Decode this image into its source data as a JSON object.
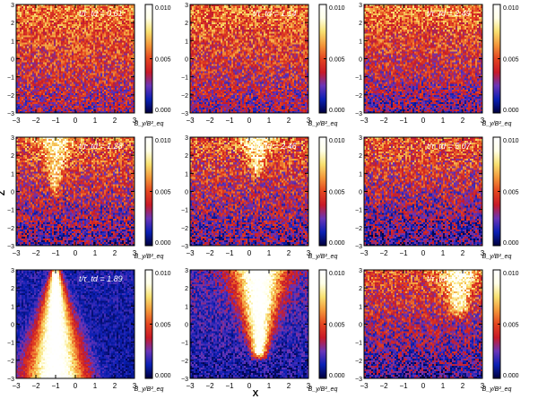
{
  "figure": {
    "ylabel": "Z",
    "xlabel": "X"
  },
  "colors": {
    "stops": [
      "#00003c",
      "#0a1fb4",
      "#6a35b8",
      "#c81a28",
      "#e44520",
      "#f3973a",
      "#f8e070",
      "#ffffe8",
      "#ffffff"
    ]
  },
  "chart_data": [
    {
      "type": "heatmap",
      "title": "t/τ_td = 0.61",
      "time_value": 0.61,
      "colorbar": {
        "label": "B̄_y/B²_eq",
        "ticks": [
          "0.010",
          "0.005",
          "0.000"
        ],
        "range": [
          0.0,
          0.01
        ]
      },
      "x_ticks": [
        "−3",
        "−2",
        "−1",
        "0",
        "1",
        "2",
        "3"
      ],
      "y_ticks": [
        "3",
        "2",
        "1",
        "0",
        "−1",
        "−2",
        "−3"
      ],
      "xlim": [
        -3,
        3
      ],
      "ylim": [
        -3,
        3
      ],
      "field": {
        "base": 0.45,
        "gradient": 0.28,
        "noise": 0.2,
        "blob": null
      }
    },
    {
      "type": "heatmap",
      "title": "t/τ_td = 1.14",
      "time_value": 1.14,
      "colorbar": {
        "label": "B̄_y/B²_eq",
        "ticks": [
          "0.010",
          "0.005",
          "0.000"
        ],
        "range": [
          0.0,
          0.01
        ]
      },
      "x_ticks": [
        "−3",
        "−2",
        "−1",
        "0",
        "1",
        "2",
        "3"
      ],
      "y_ticks": [
        "3",
        "2",
        "1",
        "0",
        "−1",
        "−2",
        "−3"
      ],
      "xlim": [
        -3,
        3
      ],
      "ylim": [
        -3,
        3
      ],
      "field": {
        "base": 0.44,
        "gradient": 0.3,
        "noise": 0.2,
        "blob": null
      }
    },
    {
      "type": "heatmap",
      "title": "t/τ_td = 2.49",
      "time_value": 2.49,
      "colorbar": {
        "label": "B̄_y/B²_eq",
        "ticks": [
          "0.010",
          "0.005",
          "0.000"
        ],
        "range": [
          0.0,
          0.01
        ]
      },
      "x_ticks": [
        "−3",
        "−2",
        "−1",
        "0",
        "1",
        "2",
        "3"
      ],
      "y_ticks": [
        "3",
        "2",
        "1",
        "0",
        "−1",
        "−2",
        "−3"
      ],
      "xlim": [
        -3,
        3
      ],
      "ylim": [
        -3,
        3
      ],
      "field": {
        "base": 0.42,
        "gradient": 0.34,
        "noise": 0.2,
        "blob": null
      }
    },
    {
      "type": "heatmap",
      "title": "t/τ_td = 1.28",
      "time_value": 1.28,
      "colorbar": {
        "label": "B̄_y/B²_eq",
        "ticks": [
          "0.010",
          "0.005",
          "0.000"
        ],
        "range": [
          0.0,
          0.01
        ]
      },
      "x_ticks": [
        "−3",
        "−2",
        "−1",
        "0",
        "1",
        "2",
        "3"
      ],
      "y_ticks": [
        "3",
        "2",
        "1",
        "0",
        "−1",
        "−2",
        "−3"
      ],
      "xlim": [
        -3,
        3
      ],
      "ylim": [
        -3,
        3
      ],
      "field": {
        "base": 0.38,
        "gradient": 0.32,
        "noise": 0.22,
        "blob": {
          "x": -1.0,
          "top": 3.0,
          "bottom": 0.2,
          "width_top": 1.1,
          "width_bottom": 0.25,
          "amp": 0.35
        }
      }
    },
    {
      "type": "heatmap",
      "title": "t/τ_td = 2.46",
      "time_value": 2.46,
      "colorbar": {
        "label": "B̄_y/B²_eq",
        "ticks": [
          "0.010",
          "0.005",
          "0.000"
        ],
        "range": [
          0.0,
          0.01
        ]
      },
      "x_ticks": [
        "−3",
        "−2",
        "−1",
        "0",
        "1",
        "2",
        "3"
      ],
      "y_ticks": [
        "3",
        "2",
        "1",
        "0",
        "−1",
        "−2",
        "−3"
      ],
      "xlim": [
        -3,
        3
      ],
      "ylim": [
        -3,
        3
      ],
      "field": {
        "base": 0.38,
        "gradient": 0.3,
        "noise": 0.22,
        "blob": {
          "x": 0.4,
          "top": 3.0,
          "bottom": 1.2,
          "width_top": 1.2,
          "width_bottom": 0.35,
          "amp": 0.33
        }
      }
    },
    {
      "type": "heatmap",
      "title": "t/τ_td = 5.07",
      "time_value": 5.07,
      "colorbar": {
        "label": "B̄_y/B²_eq",
        "ticks": [
          "0.010",
          "0.005",
          "0.000"
        ],
        "range": [
          0.0,
          0.01
        ]
      },
      "x_ticks": [
        "−3",
        "−2",
        "−1",
        "0",
        "1",
        "2",
        "3"
      ],
      "y_ticks": [
        "3",
        "2",
        "1",
        "0",
        "−1",
        "−2",
        "−3"
      ],
      "xlim": [
        -3,
        3
      ],
      "ylim": [
        -3,
        3
      ],
      "field": {
        "base": 0.36,
        "gradient": 0.36,
        "noise": 0.22,
        "blob": null
      }
    },
    {
      "type": "heatmap",
      "title": "t/τ_td = 1.89",
      "time_value": 1.89,
      "colorbar": {
        "label": "B̄_y/B²_eq",
        "ticks": [
          "0.010",
          "0.005",
          "0.000"
        ],
        "range": [
          0.0,
          0.01
        ]
      },
      "x_ticks": [
        "−3",
        "−2",
        "−1",
        "0",
        "1",
        "2",
        "3"
      ],
      "y_ticks": [
        "3",
        "2",
        "1",
        "0",
        "−1",
        "−2",
        "−3"
      ],
      "xlim": [
        -3,
        3
      ],
      "ylim": [
        -3,
        3
      ],
      "field": {
        "base": 0.12,
        "gradient": 0.05,
        "noise": 0.08,
        "blob": {
          "x": -1.0,
          "top": 2.8,
          "bottom": -3.0,
          "width_top": 0.3,
          "width_bottom": 2.0,
          "amp": 0.95
        }
      }
    },
    {
      "type": "heatmap",
      "title": "3.77",
      "time_value": 3.77,
      "colorbar": {
        "label": "B̄_y/B²_eq",
        "ticks": [
          "0.010",
          "0.005",
          "0.000"
        ],
        "range": [
          0.0,
          0.01
        ]
      },
      "x_ticks": [
        "−3",
        "−2",
        "−1",
        "0",
        "1",
        "2",
        "3"
      ],
      "y_ticks": [
        "3",
        "2",
        "1",
        "0",
        "−1",
        "−2",
        "−3"
      ],
      "xlim": [
        -3,
        3
      ],
      "ylim": [
        -3,
        3
      ],
      "field": {
        "base": 0.18,
        "gradient": 0.12,
        "noise": 0.12,
        "blob": {
          "x": 0.5,
          "top": 3.0,
          "bottom": -1.5,
          "width_top": 1.6,
          "width_bottom": 0.5,
          "amp": 0.85
        }
      }
    },
    {
      "type": "heatmap",
      "title": "t/τ_td = 11.28",
      "time_value": 11.28,
      "colorbar": {
        "label": "B̄_y/B²_eq",
        "ticks": [
          "0.010",
          "0.005",
          "0.000"
        ],
        "range": [
          0.0,
          0.01
        ]
      },
      "x_ticks": [
        "−3",
        "−2",
        "−1",
        "0",
        "1",
        "2",
        "3"
      ],
      "y_ticks": [
        "3",
        "2",
        "1",
        "0",
        "−1",
        "−2",
        "−3"
      ],
      "xlim": [
        -3,
        3
      ],
      "ylim": [
        -3,
        3
      ],
      "field": {
        "base": 0.34,
        "gradient": 0.34,
        "noise": 0.2,
        "blob": {
          "x": 1.8,
          "top": 3.0,
          "bottom": 0.8,
          "width_top": 1.2,
          "width_bottom": 0.6,
          "amp": 0.45
        }
      }
    }
  ]
}
